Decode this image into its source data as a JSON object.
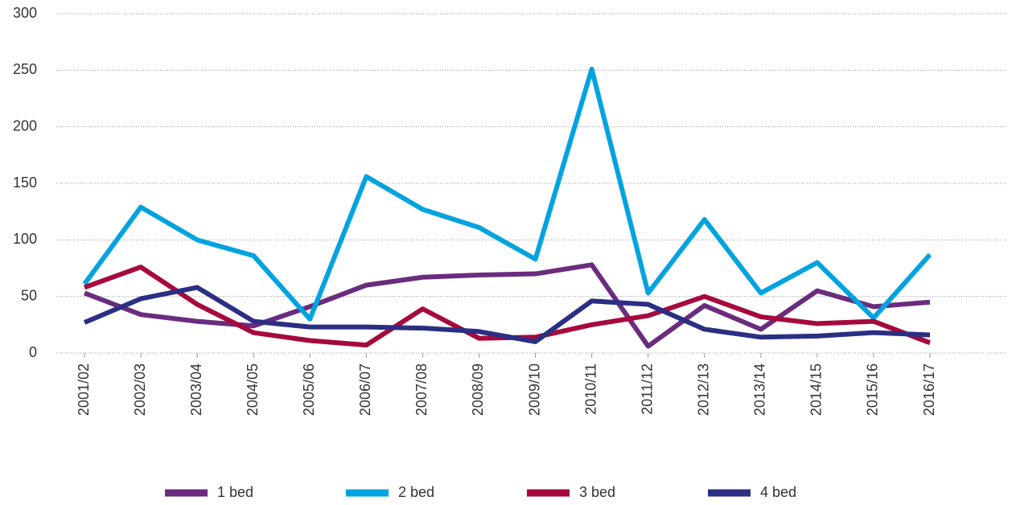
{
  "chart_data": {
    "type": "line",
    "categories": [
      "2001/02",
      "2002/03",
      "2003/04",
      "2004/05",
      "2005/06",
      "2006/07",
      "2007/08",
      "2008/09",
      "2009/10",
      "2010/11",
      "2011/12",
      "2012/13",
      "2013/14",
      "2014/15",
      "2015/16",
      "2016/17"
    ],
    "series": [
      {
        "name": "1 bed",
        "color": "#6a2c7e",
        "values": [
          53,
          34,
          28,
          24,
          41,
          60,
          67,
          69,
          70,
          78,
          6,
          42,
          21,
          55,
          41,
          45
        ]
      },
      {
        "name": "2 bed",
        "color": "#00a3e0",
        "values": [
          61,
          129,
          100,
          86,
          30,
          156,
          127,
          111,
          83,
          251,
          53,
          118,
          53,
          80,
          31,
          87
        ]
      },
      {
        "name": "3 bed",
        "color": "#a6093d",
        "values": [
          58,
          76,
          43,
          18,
          11,
          7,
          39,
          13,
          14,
          25,
          33,
          50,
          32,
          26,
          28,
          9
        ]
      },
      {
        "name": "4 bed",
        "color": "#2b2f83",
        "values": [
          27,
          48,
          58,
          28,
          23,
          23,
          22,
          19,
          10,
          46,
          43,
          21,
          14,
          15,
          18,
          16
        ]
      }
    ],
    "ylim": [
      0,
      300
    ],
    "yticks": [
      0,
      50,
      100,
      150,
      200,
      250,
      300
    ],
    "grid": true,
    "legend": "bottom"
  }
}
